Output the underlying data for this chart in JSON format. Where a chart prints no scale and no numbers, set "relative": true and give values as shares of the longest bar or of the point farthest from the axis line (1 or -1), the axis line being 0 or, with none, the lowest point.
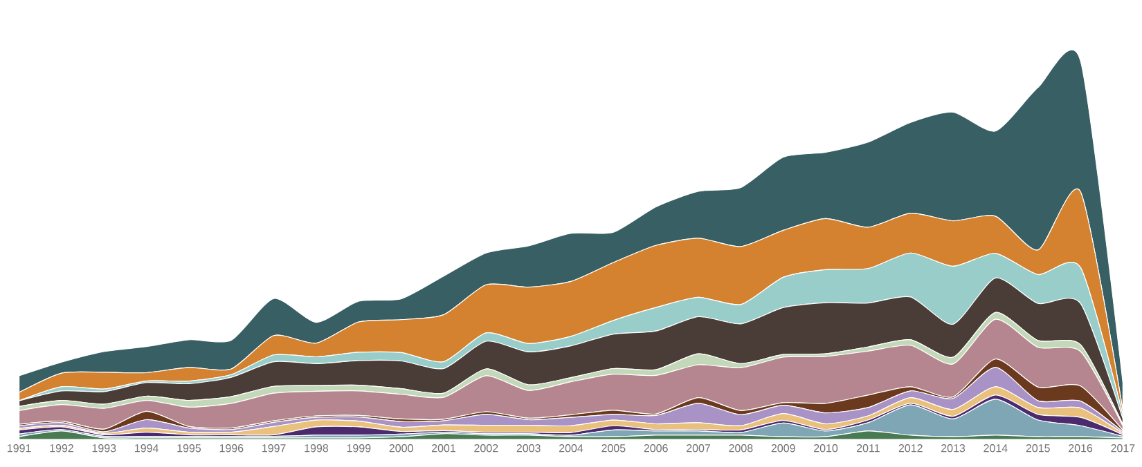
{
  "chart_data": {
    "type": "area",
    "stacked": true,
    "relative": true,
    "categories": [
      "1991",
      "1992",
      "1993",
      "1994",
      "1995",
      "1996",
      "1997",
      "1998",
      "1999",
      "2000",
      "2001",
      "2002",
      "2003",
      "2004",
      "2005",
      "2006",
      "2007",
      "2008",
      "2009",
      "2010",
      "2011",
      "2012",
      "2013",
      "2014",
      "2015",
      "2016",
      "2017"
    ],
    "series": [
      {
        "color": "#4a7a52",
        "values": [
          0.007,
          0.022,
          0.004,
          0.004,
          0.004,
          0.004,
          0.004,
          0.004,
          0.004,
          0.007,
          0.015,
          0.011,
          0.011,
          0.007,
          0.007,
          0.011,
          0.011,
          0.011,
          0.007,
          0.007,
          0.022,
          0.011,
          0.007,
          0.011,
          0.007,
          0.007,
          0.004
        ]
      },
      {
        "color": "#7fa6b5",
        "values": [
          0.007,
          0.004,
          0.004,
          0.004,
          0.004,
          0.004,
          0.004,
          0.007,
          0.007,
          0.007,
          0.004,
          0.004,
          0.004,
          0.004,
          0.018,
          0.011,
          0.011,
          0.007,
          0.036,
          0.015,
          0.022,
          0.08,
          0.047,
          0.095,
          0.044,
          0.029,
          0.004
        ]
      },
      {
        "color": "#4b2a6e",
        "values": [
          0.011,
          0.007,
          0.004,
          0.011,
          0.004,
          0.004,
          0.004,
          0.022,
          0.022,
          0.007,
          0.004,
          0.004,
          0.004,
          0.007,
          0.011,
          0.004,
          0.004,
          0.007,
          0.007,
          0.004,
          0.007,
          0.004,
          0.007,
          0.011,
          0.015,
          0.022,
          0.004
        ]
      },
      {
        "color": "#e9c07c",
        "values": [
          0.004,
          0.004,
          0.004,
          0.011,
          0.007,
          0.007,
          0.022,
          0.018,
          0.015,
          0.011,
          0.015,
          0.018,
          0.018,
          0.018,
          0.015,
          0.015,
          0.018,
          0.011,
          0.018,
          0.015,
          0.011,
          0.015,
          0.018,
          0.022,
          0.018,
          0.025,
          0.004
        ]
      },
      {
        "color": "#a892c6",
        "values": [
          0.007,
          0.007,
          0.004,
          0.022,
          0.011,
          0.007,
          0.011,
          0.007,
          0.011,
          0.015,
          0.011,
          0.029,
          0.015,
          0.022,
          0.015,
          0.022,
          0.051,
          0.029,
          0.022,
          0.029,
          0.022,
          0.018,
          0.029,
          0.051,
          0.018,
          0.018,
          0.004
        ]
      },
      {
        "color": "#6b3a1e",
        "values": [
          0.004,
          0.004,
          0.007,
          0.022,
          0.004,
          0.004,
          0.004,
          0.004,
          0.004,
          0.007,
          0.004,
          0.007,
          0.004,
          0.007,
          0.011,
          0.004,
          0.015,
          0.011,
          0.007,
          0.025,
          0.033,
          0.011,
          0.004,
          0.022,
          0.036,
          0.04,
          0.004
        ]
      },
      {
        "color": "#b5868f",
        "values": [
          0.036,
          0.044,
          0.055,
          0.029,
          0.051,
          0.065,
          0.073,
          0.065,
          0.065,
          0.065,
          0.058,
          0.095,
          0.073,
          0.087,
          0.095,
          0.102,
          0.087,
          0.113,
          0.12,
          0.124,
          0.116,
          0.109,
          0.087,
          0.105,
          0.105,
          0.091,
          0.011
        ]
      },
      {
        "color": "#c3d8b8",
        "values": [
          0.011,
          0.011,
          0.011,
          0.011,
          0.018,
          0.018,
          0.018,
          0.015,
          0.015,
          0.015,
          0.011,
          0.018,
          0.015,
          0.011,
          0.015,
          0.015,
          0.029,
          0.011,
          0.007,
          0.007,
          0.011,
          0.015,
          0.018,
          0.018,
          0.018,
          0.018,
          0.004
        ]
      },
      {
        "color": "#4a3d38",
        "values": [
          0.015,
          0.025,
          0.033,
          0.036,
          0.044,
          0.051,
          0.065,
          0.058,
          0.065,
          0.073,
          0.065,
          0.073,
          0.087,
          0.084,
          0.091,
          0.102,
          0.098,
          0.105,
          0.124,
          0.135,
          0.116,
          0.113,
          0.087,
          0.091,
          0.098,
          0.109,
          0.015
        ]
      },
      {
        "color": "#98cdc9",
        "values": [
          0,
          0.011,
          0.007,
          0.004,
          0.007,
          0.007,
          0.018,
          0.018,
          0.022,
          0.022,
          0.018,
          0.022,
          0.022,
          0.025,
          0.036,
          0.062,
          0.051,
          0.051,
          0.08,
          0.087,
          0.091,
          0.116,
          0.153,
          0.065,
          0.076,
          0.095,
          0.011
        ]
      },
      {
        "color": "#d4822f",
        "values": [
          0.022,
          0.036,
          0.044,
          0.022,
          0.036,
          0.015,
          0.051,
          0.036,
          0.08,
          0.087,
          0.124,
          0.127,
          0.149,
          0.145,
          0.153,
          0.164,
          0.156,
          0.153,
          0.124,
          0.135,
          0.109,
          0.105,
          0.12,
          0.098,
          0.065,
          0.2,
          0.011
        ]
      },
      {
        "color": "#385f64",
        "values": [
          0.044,
          0.029,
          0.055,
          0.069,
          0.073,
          0.076,
          0.098,
          0.055,
          0.055,
          0.055,
          0.102,
          0.084,
          0.109,
          0.127,
          0.08,
          0.102,
          0.124,
          0.156,
          0.193,
          0.175,
          0.225,
          0.24,
          0.287,
          0.225,
          0.429,
          0.346,
          0.073
        ]
      }
    ]
  }
}
